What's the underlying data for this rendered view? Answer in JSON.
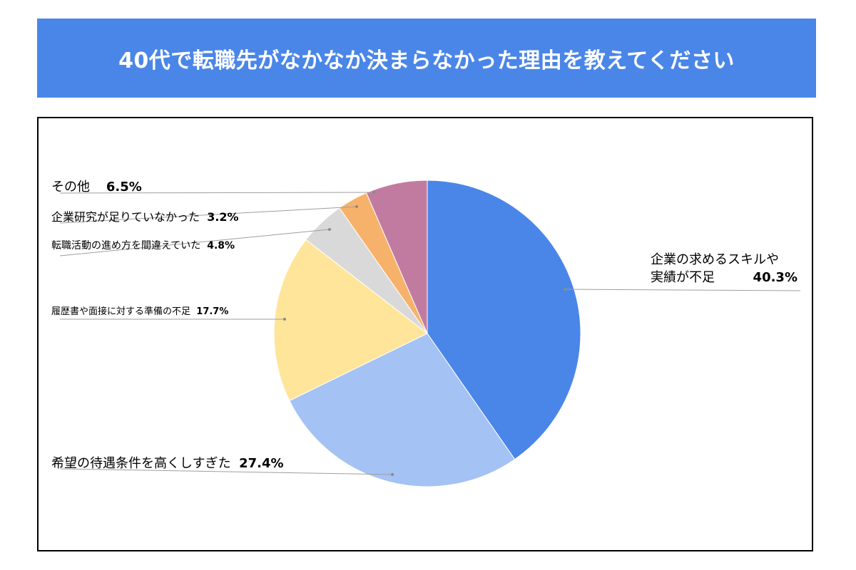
{
  "title": "40代で転職先がなかなか決まらなかった理由を教えてください",
  "chart_data": {
    "type": "pie",
    "start_angle_deg": 0,
    "direction": "clockwise",
    "legend": "none",
    "slices": [
      {
        "label": "企業の求めるスキルや実績が不足",
        "label_lines": [
          "企業の求めるスキルや",
          "実績が不足"
        ],
        "value": 40.3,
        "value_label": "40.3%",
        "color": "#4a86e8"
      },
      {
        "label": "希望の待遇条件を高くしすぎた",
        "value": 27.4,
        "value_label": "27.4%",
        "color": "#a4c2f4"
      },
      {
        "label": "履歴書や面接に対する準備の不足",
        "value": 17.7,
        "value_label": "17.7%",
        "color": "#ffe599"
      },
      {
        "label": "転職活動の進め方を間違えていた",
        "value": 4.8,
        "value_label": "4.8%",
        "color": "#d9d9d9"
      },
      {
        "label": "企業研究が足りていなかった",
        "value": 3.2,
        "value_label": "3.2%",
        "color": "#f6b26b"
      },
      {
        "label": "その他",
        "value": 6.5,
        "value_label": "6.5%",
        "color": "#c27ba0"
      }
    ]
  }
}
